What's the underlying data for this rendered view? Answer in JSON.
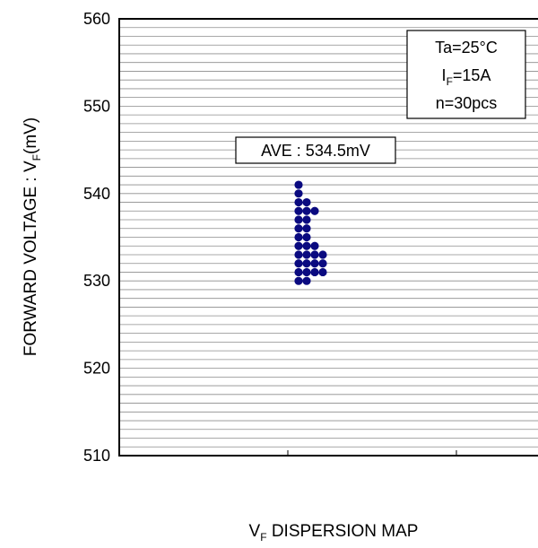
{
  "chart_data": {
    "type": "scatter",
    "ylabel": {
      "main": "FORWARD VOLTAGE : V",
      "sub": "F",
      "tail": "(mV)"
    },
    "xlabel": {
      "main": "V",
      "sub": "F",
      "tail": " DISPERSION MAP"
    },
    "ylim": [
      510,
      560
    ],
    "yticks": [
      "510",
      "520",
      "530",
      "540",
      "550",
      "560"
    ],
    "grid": true,
    "minor_grid_step": 1,
    "x_categories": 3,
    "legend_box": {
      "line1": "Ta=25°C",
      "line2": {
        "main": "I",
        "sub": "F",
        "tail": "=15A"
      },
      "line3": "n=30pcs",
      "placement": "top-right"
    },
    "average": {
      "label": "AVE : 534.5mV",
      "value": 534.5
    },
    "marker_color": "#0a0a80",
    "points": [
      {
        "col": 0,
        "y": 541
      },
      {
        "col": 0,
        "y": 540
      },
      {
        "col": 0,
        "y": 539
      },
      {
        "col": 0,
        "y": 538
      },
      {
        "col": 0,
        "y": 537
      },
      {
        "col": 0,
        "y": 536
      },
      {
        "col": 0,
        "y": 535
      },
      {
        "col": 0,
        "y": 534
      },
      {
        "col": 0,
        "y": 533
      },
      {
        "col": 0,
        "y": 532
      },
      {
        "col": 0,
        "y": 531
      },
      {
        "col": 0,
        "y": 530
      },
      {
        "col": 1,
        "y": 539
      },
      {
        "col": 1,
        "y": 538
      },
      {
        "col": 1,
        "y": 537
      },
      {
        "col": 1,
        "y": 536
      },
      {
        "col": 1,
        "y": 535
      },
      {
        "col": 1,
        "y": 534
      },
      {
        "col": 1,
        "y": 533
      },
      {
        "col": 1,
        "y": 532
      },
      {
        "col": 1,
        "y": 531
      },
      {
        "col": 1,
        "y": 530
      },
      {
        "col": 2,
        "y": 538
      },
      {
        "col": 2,
        "y": 534
      },
      {
        "col": 2,
        "y": 533
      },
      {
        "col": 2,
        "y": 532
      },
      {
        "col": 2,
        "y": 531
      },
      {
        "col": 3,
        "y": 533
      },
      {
        "col": 3,
        "y": 532
      },
      {
        "col": 3,
        "y": 531
      }
    ]
  }
}
